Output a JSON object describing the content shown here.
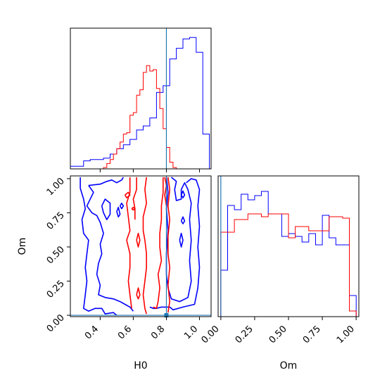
{
  "chart_data": {
    "type": "corner",
    "truth": {
      "H0": 0.8,
      "Om": 0.0,
      "color": "#1f77b4"
    },
    "colors": {
      "blue": "#0000ff",
      "red": "#ff0000"
    },
    "h0_hist": {
      "title": "",
      "xlim": [
        0.22,
        1.07
      ],
      "ylim": [
        0,
        1.05
      ],
      "ticks": [
        0.4,
        0.6,
        0.8,
        1.0
      ],
      "series": [
        {
          "color": "#0000ff",
          "edges": [
            0.22,
            0.26,
            0.3,
            0.34,
            0.38,
            0.42,
            0.46,
            0.5,
            0.54,
            0.58,
            0.62,
            0.66,
            0.7,
            0.74,
            0.78,
            0.82,
            0.86,
            0.9,
            0.94,
            0.98,
            1.02,
            1.06
          ],
          "counts": [
            0.02,
            0.02,
            0.06,
            0.07,
            0.07,
            0.08,
            0.11,
            0.15,
            0.18,
            0.22,
            0.29,
            0.32,
            0.38,
            0.57,
            0.62,
            0.82,
            0.9,
            0.97,
            0.98,
            0.87,
            0.26
          ]
        },
        {
          "color": "#ff0000",
          "edges": [
            0.4,
            0.42,
            0.44,
            0.46,
            0.48,
            0.5,
            0.52,
            0.54,
            0.56,
            0.58,
            0.6,
            0.62,
            0.64,
            0.66,
            0.68,
            0.7,
            0.72,
            0.74,
            0.76,
            0.78,
            0.8,
            0.82,
            0.84,
            0.86
          ],
          "counts": [
            0.0,
            0.01,
            0.04,
            0.07,
            0.11,
            0.15,
            0.2,
            0.26,
            0.27,
            0.4,
            0.42,
            0.55,
            0.59,
            0.72,
            0.77,
            0.73,
            0.74,
            0.6,
            0.45,
            0.3,
            0.16,
            0.05,
            0.01
          ]
        }
      ]
    },
    "om_hist": {
      "xlim": [
        -0.02,
        1.02
      ],
      "ylim": [
        0,
        1.0
      ],
      "ticks": [
        0.0,
        0.25,
        0.5,
        0.75,
        1.0
      ],
      "tick_labels": [
        "0.00",
        "0.25",
        "0.50",
        "0.75",
        "1.00"
      ],
      "xlabel": "Om",
      "series": [
        {
          "color": "#0000ff",
          "edges": [
            0.0,
            0.05,
            0.1,
            0.15,
            0.2,
            0.25,
            0.3,
            0.35,
            0.4,
            0.45,
            0.5,
            0.55,
            0.6,
            0.65,
            0.7,
            0.75,
            0.8,
            0.85,
            0.9,
            0.95,
            1.0
          ],
          "counts": [
            0.33,
            0.79,
            0.76,
            0.87,
            0.83,
            0.86,
            0.89,
            0.73,
            0.73,
            0.57,
            0.59,
            0.57,
            0.53,
            0.59,
            0.51,
            0.72,
            0.56,
            0.51,
            0.51,
            0.15
          ]
        },
        {
          "color": "#ff0000",
          "edges": [
            0.0,
            0.05,
            0.1,
            0.15,
            0.2,
            0.25,
            0.3,
            0.35,
            0.4,
            0.45,
            0.5,
            0.55,
            0.6,
            0.65,
            0.7,
            0.75,
            0.8,
            0.85,
            0.9,
            0.95,
            1.0
          ],
          "counts": [
            0.6,
            0.6,
            0.69,
            0.69,
            0.73,
            0.73,
            0.71,
            0.73,
            0.73,
            0.73,
            0.56,
            0.64,
            0.64,
            0.61,
            0.61,
            0.61,
            0.71,
            0.71,
            0.7,
            0.04
          ]
        }
      ]
    },
    "contour": {
      "xlim": [
        0.22,
        1.07
      ],
      "ylim": [
        -0.01,
        1.02
      ],
      "xticks": [
        0.4,
        0.6,
        0.8,
        1.0
      ],
      "xtick_labels": [
        "0.4",
        "0.6",
        "0.8",
        "1.0"
      ],
      "yticks": [
        0.0,
        0.25,
        0.5,
        0.75,
        1.0
      ],
      "ytick_labels": [
        "0.00",
        "0.25",
        "0.50",
        "0.75",
        "1.00"
      ],
      "xlabel": "H0",
      "ylabel": "Om",
      "paths": [
        {
          "color": "#0000ff",
          "points": [
            [
              0.28,
              1.01
            ],
            [
              0.28,
              0.93
            ],
            [
              0.3,
              0.85
            ],
            [
              0.31,
              0.78
            ],
            [
              0.29,
              0.7
            ],
            [
              0.3,
              0.6
            ],
            [
              0.33,
              0.55
            ],
            [
              0.32,
              0.45
            ],
            [
              0.31,
              0.35
            ],
            [
              0.32,
              0.25
            ],
            [
              0.31,
              0.15
            ],
            [
              0.3,
              0.05
            ],
            [
              0.33,
              0.03
            ],
            [
              0.37,
              0.05
            ],
            [
              0.41,
              0.05
            ],
            [
              0.43,
              0.01
            ],
            [
              0.48,
              0.02
            ],
            [
              0.5,
              0.0
            ]
          ]
        },
        {
          "color": "#0000ff",
          "points": [
            [
              0.33,
              0.95
            ],
            [
              0.4,
              0.96
            ],
            [
              0.44,
              0.98
            ],
            [
              0.47,
              0.99
            ],
            [
              0.5,
              0.97
            ],
            [
              0.53,
              0.99
            ],
            [
              0.54,
              1.01
            ]
          ]
        },
        {
          "color": "#0000ff",
          "points": [
            [
              0.33,
              0.95
            ],
            [
              0.36,
              0.9
            ],
            [
              0.32,
              0.8
            ],
            [
              0.35,
              0.75
            ],
            [
              0.38,
              0.73
            ],
            [
              0.4,
              0.68
            ],
            [
              0.42,
              0.6
            ],
            [
              0.4,
              0.52
            ],
            [
              0.41,
              0.45
            ],
            [
              0.39,
              0.38
            ],
            [
              0.38,
              0.3
            ],
            [
              0.4,
              0.22
            ],
            [
              0.39,
              0.15
            ],
            [
              0.43,
              0.13
            ],
            [
              0.48,
              0.12
            ],
            [
              0.52,
              0.1
            ],
            [
              0.55,
              0.08
            ],
            [
              0.58,
              0.06
            ],
            [
              0.6,
              0.03
            ]
          ]
        },
        {
          "color": "#0000ff",
          "points": [
            [
              0.41,
              0.8
            ],
            [
              0.43,
              0.85
            ],
            [
              0.46,
              0.82
            ],
            [
              0.46,
              0.74
            ],
            [
              0.44,
              0.7
            ],
            [
              0.42,
              0.75
            ],
            [
              0.41,
              0.8
            ]
          ]
        },
        {
          "color": "#0000ff",
          "points": [
            [
              0.7,
              0.06
            ],
            [
              0.72,
              0.05
            ],
            [
              0.74,
              0.05
            ],
            [
              0.77,
              0.06
            ],
            [
              0.82,
              0.06
            ],
            [
              0.84,
              0.04
            ],
            [
              0.9,
              0.06
            ],
            [
              0.97,
              0.08
            ],
            [
              0.99,
              0.2
            ],
            [
              1.0,
              0.35
            ],
            [
              0.99,
              0.5
            ],
            [
              1.0,
              0.65
            ],
            [
              0.99,
              0.8
            ],
            [
              1.0,
              0.92
            ],
            [
              0.98,
              0.99
            ],
            [
              0.95,
              1.0
            ],
            [
              0.92,
              0.97
            ]
          ]
        },
        {
          "color": "#0000ff",
          "points": [
            [
              0.8,
              1.01
            ],
            [
              0.81,
              0.9
            ],
            [
              0.8,
              0.78
            ],
            [
              0.81,
              0.62
            ],
            [
              0.8,
              0.45
            ],
            [
              0.8,
              0.3
            ],
            [
              0.81,
              0.2
            ],
            [
              0.83,
              0.12
            ],
            [
              0.88,
              0.1
            ],
            [
              0.93,
              0.13
            ],
            [
              0.95,
              0.25
            ],
            [
              0.94,
              0.4
            ],
            [
              0.95,
              0.55
            ],
            [
              0.94,
              0.7
            ],
            [
              0.95,
              0.82
            ],
            [
              0.93,
              0.92
            ],
            [
              0.91,
              0.97
            ],
            [
              0.89,
              0.92
            ],
            [
              0.89,
              0.85
            ],
            [
              0.86,
              0.84
            ],
            [
              0.85,
              0.92
            ],
            [
              0.86,
              0.98
            ],
            [
              0.83,
              1.01
            ]
          ]
        },
        {
          "color": "#0000ff",
          "points": [
            [
              0.5,
              0.76
            ],
            [
              0.51,
              0.72
            ],
            [
              0.52,
              0.74
            ],
            [
              0.51,
              0.79
            ],
            [
              0.5,
              0.76
            ]
          ]
        },
        {
          "color": "#0000ff",
          "points": [
            [
              0.52,
              0.8
            ],
            [
              0.53,
              0.82
            ],
            [
              0.54,
              0.8
            ],
            [
              0.53,
              0.78
            ],
            [
              0.52,
              0.8
            ]
          ]
        },
        {
          "color": "#0000ff",
          "points": [
            [
              0.89,
              0.69
            ],
            [
              0.9,
              0.72
            ],
            [
              0.91,
              0.69
            ],
            [
              0.9,
              0.67
            ],
            [
              0.89,
              0.69
            ]
          ]
        },
        {
          "color": "#0000ff",
          "points": [
            [
              0.89,
              0.88
            ],
            [
              0.9,
              0.91
            ],
            [
              0.91,
              0.88
            ],
            [
              0.9,
              0.86
            ],
            [
              0.89,
              0.88
            ]
          ]
        },
        {
          "color": "#0000ff",
          "points": [
            [
              0.88,
              0.55
            ],
            [
              0.89,
              0.6
            ],
            [
              0.9,
              0.55
            ],
            [
              0.89,
              0.5
            ],
            [
              0.88,
              0.55
            ]
          ]
        },
        {
          "color": "#ff0000",
          "points": [
            [
              0.59,
              0.05
            ],
            [
              0.58,
              0.15
            ],
            [
              0.57,
              0.25
            ],
            [
              0.58,
              0.35
            ],
            [
              0.58,
              0.45
            ],
            [
              0.56,
              0.55
            ],
            [
              0.58,
              0.62
            ],
            [
              0.57,
              0.72
            ],
            [
              0.56,
              0.82
            ],
            [
              0.58,
              0.9
            ],
            [
              0.58,
              1.01
            ]
          ]
        },
        {
          "color": "#ff0000",
          "points": [
            [
              0.62,
              1.01
            ],
            [
              0.62,
              0.92
            ],
            [
              0.6,
              0.85
            ],
            [
              0.61,
              0.78
            ],
            [
              0.61,
              0.7
            ]
          ]
        },
        {
          "color": "#ff0000",
          "points": [
            [
              0.68,
              1.01
            ],
            [
              0.67,
              0.92
            ],
            [
              0.68,
              0.82
            ],
            [
              0.66,
              0.72
            ],
            [
              0.66,
              0.62
            ],
            [
              0.67,
              0.55
            ],
            [
              0.68,
              0.45
            ],
            [
              0.68,
              0.35
            ],
            [
              0.67,
              0.25
            ],
            [
              0.66,
              0.15
            ],
            [
              0.67,
              0.05
            ],
            [
              0.68,
              0.01
            ]
          ]
        },
        {
          "color": "#ff0000",
          "points": [
            [
              0.78,
              1.01
            ],
            [
              0.78,
              0.9
            ],
            [
              0.77,
              0.8
            ],
            [
              0.77,
              0.7
            ],
            [
              0.76,
              0.6
            ],
            [
              0.76,
              0.5
            ],
            [
              0.77,
              0.4
            ],
            [
              0.75,
              0.3
            ],
            [
              0.76,
              0.2
            ],
            [
              0.75,
              0.1
            ],
            [
              0.74,
              0.05
            ],
            [
              0.72,
              0.06
            ]
          ]
        },
        {
          "color": "#ff0000",
          "points": [
            [
              0.81,
              1.01
            ],
            [
              0.82,
              0.92
            ],
            [
              0.81,
              0.8
            ],
            [
              0.82,
              0.7
            ],
            [
              0.81,
              0.58
            ],
            [
              0.81,
              0.45
            ],
            [
              0.82,
              0.35
            ],
            [
              0.81,
              0.22
            ],
            [
              0.82,
              0.1
            ],
            [
              0.81,
              0.02
            ]
          ]
        },
        {
          "color": "#ff0000",
          "points": [
            [
              0.79,
              1.01
            ],
            [
              0.8,
              0.95
            ],
            [
              0.79,
              0.88
            ],
            [
              0.8,
              0.8
            ]
          ]
        },
        {
          "color": "#ff0000",
          "points": [
            [
              0.62,
              0.55
            ],
            [
              0.63,
              0.5
            ],
            [
              0.64,
              0.55
            ],
            [
              0.63,
              0.6
            ],
            [
              0.62,
              0.55
            ]
          ]
        },
        {
          "color": "#ff0000",
          "points": [
            [
              0.62,
              0.15
            ],
            [
              0.63,
              0.12
            ],
            [
              0.64,
              0.15
            ],
            [
              0.63,
              0.2
            ],
            [
              0.62,
              0.15
            ]
          ]
        },
        {
          "color": "#ff0000",
          "points": [
            [
              0.55,
              0.88
            ],
            [
              0.57,
              0.9
            ],
            [
              0.58,
              0.88
            ],
            [
              0.56,
              0.86
            ],
            [
              0.55,
              0.88
            ]
          ]
        },
        {
          "color": "#ff0000",
          "points": [
            [
              0.59,
              0.78
            ],
            [
              0.6,
              0.79
            ],
            [
              0.61,
              0.78
            ],
            [
              0.6,
              0.77
            ],
            [
              0.59,
              0.78
            ]
          ]
        }
      ]
    }
  }
}
